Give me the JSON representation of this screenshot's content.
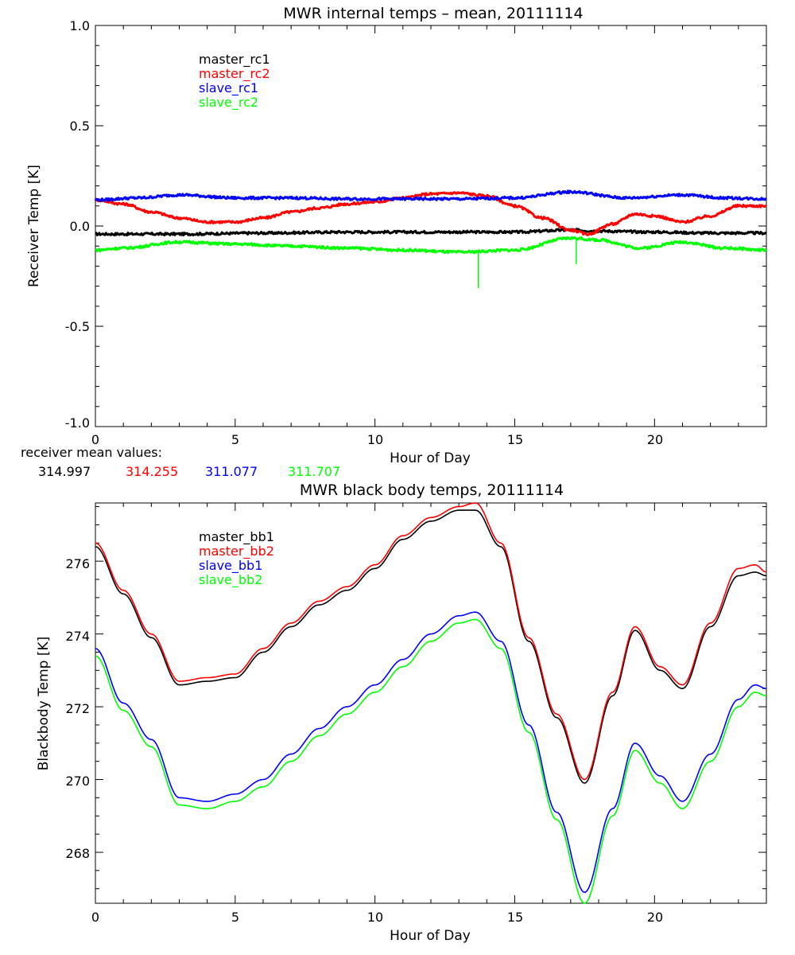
{
  "colors": {
    "black": "#000000",
    "red": "#ff0000",
    "blue": "#0000ff",
    "green": "#00ff00"
  },
  "chart_data": [
    {
      "type": "line",
      "title": "MWR internal temps – mean, 20111114",
      "xlabel": "Hour of Day",
      "ylabel": "Receiver Temp [K]",
      "xlim": [
        0,
        24
      ],
      "ylim": [
        -1.0,
        1.0
      ],
      "xticks": [
        "0",
        "5",
        "10",
        "15",
        "20"
      ],
      "yticks": [
        "1.0",
        "0.5",
        "0.0",
        "-0.5",
        "-1.0"
      ],
      "series": [
        {
          "name": "master_rc1",
          "color": "#000000",
          "x": [
            0,
            3,
            6,
            9,
            12,
            15,
            17,
            18,
            20,
            22,
            24
          ],
          "y": [
            -0.04,
            -0.04,
            -0.035,
            -0.03,
            -0.03,
            -0.03,
            -0.02,
            -0.025,
            -0.03,
            -0.035,
            -0.035
          ]
        },
        {
          "name": "master_rc2",
          "color": "#ff0000",
          "x": [
            0,
            1,
            2,
            3,
            4,
            5,
            6,
            7,
            8,
            9,
            10,
            11,
            12,
            13,
            14,
            15,
            16,
            17,
            17.6,
            18.5,
            19.3,
            20,
            21,
            22,
            23,
            24
          ],
          "y": [
            0.13,
            0.11,
            0.07,
            0.04,
            0.02,
            0.02,
            0.04,
            0.07,
            0.09,
            0.11,
            0.12,
            0.14,
            0.16,
            0.165,
            0.15,
            0.1,
            0.04,
            -0.02,
            -0.04,
            0.01,
            0.06,
            0.05,
            0.02,
            0.05,
            0.1,
            0.1
          ]
        },
        {
          "name": "slave_rc1",
          "color": "#0000ff",
          "x": [
            0,
            1.5,
            3,
            5,
            7,
            9,
            11,
            13,
            15,
            17,
            19,
            21,
            22.5,
            24
          ],
          "y": [
            0.13,
            0.14,
            0.155,
            0.14,
            0.14,
            0.135,
            0.135,
            0.135,
            0.14,
            0.17,
            0.14,
            0.155,
            0.14,
            0.135
          ]
        },
        {
          "name": "slave_rc2",
          "color": "#00ff00",
          "x": [
            0,
            1,
            3,
            5,
            7,
            9,
            11,
            13,
            15,
            17,
            18,
            19.5,
            21,
            22.5,
            24
          ],
          "y": [
            -0.12,
            -0.11,
            -0.08,
            -0.09,
            -0.1,
            -0.11,
            -0.12,
            -0.13,
            -0.12,
            -0.06,
            -0.07,
            -0.11,
            -0.08,
            -0.11,
            -0.12
          ]
        }
      ],
      "spikes": [
        {
          "series": "slave_rc2",
          "x": 13.7,
          "y": -0.31
        },
        {
          "series": "slave_rc2",
          "x": 17.2,
          "y": -0.19
        }
      ]
    },
    {
      "type": "line",
      "title": "MWR black body temps, 20111114",
      "xlabel": "Hour of Day",
      "ylabel": "Blackbody Temp [K]",
      "xlim": [
        0,
        24
      ],
      "ylim": [
        266.6,
        277.6
      ],
      "xticks": [
        "0",
        "5",
        "10",
        "15",
        "20"
      ],
      "yticks": [
        "268",
        "270",
        "272",
        "274",
        "276"
      ],
      "series": [
        {
          "name": "master_bb1",
          "color": "#000000",
          "x": [
            0,
            1,
            2,
            3,
            4,
            5,
            6,
            7,
            8,
            9,
            10,
            11,
            12,
            13,
            13.6,
            14.5,
            15.5,
            16.5,
            17.5,
            18.5,
            19.3,
            20.2,
            21,
            22,
            23,
            23.6,
            24
          ],
          "y": [
            276.4,
            275.1,
            273.9,
            272.6,
            272.7,
            272.8,
            273.5,
            274.2,
            274.8,
            275.2,
            275.8,
            276.6,
            277.1,
            277.4,
            277.4,
            276.4,
            273.8,
            271.7,
            269.9,
            272.3,
            274.1,
            273.0,
            272.5,
            274.2,
            275.6,
            275.7,
            275.6
          ]
        },
        {
          "name": "master_bb2",
          "color": "#ff0000",
          "x": [
            0,
            1,
            2,
            3,
            4,
            5,
            6,
            7,
            8,
            9,
            10,
            11,
            12,
            13,
            13.6,
            14.5,
            15.5,
            16.5,
            17.5,
            18.5,
            19.3,
            20.2,
            21,
            22,
            23,
            23.6,
            24
          ],
          "y": [
            276.5,
            275.2,
            274.0,
            272.7,
            272.8,
            272.9,
            273.6,
            274.3,
            274.9,
            275.3,
            275.9,
            276.7,
            277.2,
            277.5,
            277.6,
            276.5,
            273.9,
            271.8,
            270.0,
            272.4,
            274.2,
            273.1,
            272.6,
            274.3,
            275.8,
            275.9,
            275.7
          ]
        },
        {
          "name": "slave_bb1",
          "color": "#0000ff",
          "x": [
            0,
            1,
            2,
            3,
            4,
            5,
            6,
            7,
            8,
            9,
            10,
            11,
            12,
            13,
            13.6,
            14.5,
            15.5,
            16.5,
            17.5,
            18.5,
            19.3,
            20.2,
            21,
            22,
            23,
            23.6,
            24
          ],
          "y": [
            273.6,
            272.1,
            271.1,
            269.5,
            269.4,
            269.6,
            270.0,
            270.7,
            271.4,
            272.0,
            272.6,
            273.3,
            274.0,
            274.5,
            274.6,
            273.8,
            271.5,
            269.1,
            266.9,
            269.2,
            271.0,
            270.1,
            269.4,
            270.7,
            272.2,
            272.6,
            272.5
          ]
        },
        {
          "name": "slave_bb2",
          "color": "#00ff00",
          "x": [
            0,
            1,
            2,
            3,
            4,
            5,
            6,
            7,
            8,
            9,
            10,
            11,
            12,
            13,
            13.6,
            14.5,
            15.5,
            16.5,
            17.5,
            18.5,
            19.3,
            20.2,
            21,
            22,
            23,
            23.6,
            24
          ],
          "y": [
            273.4,
            271.9,
            270.9,
            269.3,
            269.2,
            269.4,
            269.8,
            270.5,
            271.2,
            271.8,
            272.4,
            273.1,
            273.8,
            274.3,
            274.4,
            273.6,
            271.3,
            268.9,
            266.6,
            269.0,
            270.8,
            269.9,
            269.2,
            270.5,
            272.0,
            272.4,
            272.3
          ]
        }
      ]
    }
  ],
  "mean_values": {
    "label": "receiver mean values:",
    "items": [
      {
        "value": "314.997",
        "color": "#000000"
      },
      {
        "value": "314.255",
        "color": "#ff0000"
      },
      {
        "value": "311.077",
        "color": "#0000ff"
      },
      {
        "value": "311.707",
        "color": "#00ff00"
      }
    ]
  }
}
